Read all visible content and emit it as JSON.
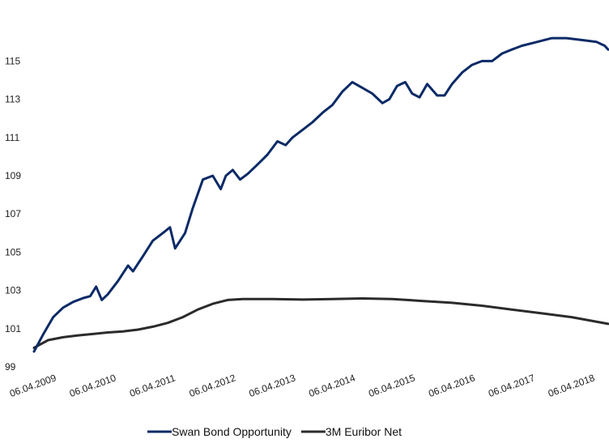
{
  "chart_data": {
    "type": "line",
    "title": "",
    "xlabel": "",
    "ylabel": "",
    "x_ticks": [
      "06.04.2009",
      "06.04.2010",
      "06.04.2011",
      "06.04.2012",
      "06.04.2013",
      "06.04.2014",
      "06.04.2015",
      "06.04.2016",
      "06.04.2017",
      "06.04.2018"
    ],
    "y_ticks": [
      99,
      101,
      103,
      105,
      107,
      109,
      111,
      113,
      115
    ],
    "ylim": [
      99,
      116.5
    ],
    "xlim": [
      "2009-04-06",
      "2018-11-15"
    ],
    "grid": false,
    "legend_position": "bottom",
    "series": [
      {
        "name": "Swan Bond Opportunity",
        "color": "#0b2a66",
        "points": [
          [
            "2009-04-06",
            99.8
          ],
          [
            "2009-06-01",
            100.7
          ],
          [
            "2009-08-01",
            101.6
          ],
          [
            "2009-10-01",
            102.1
          ],
          [
            "2009-12-01",
            102.4
          ],
          [
            "2010-02-01",
            102.6
          ],
          [
            "2010-03-15",
            102.7
          ],
          [
            "2010-04-20",
            103.2
          ],
          [
            "2010-05-25",
            102.5
          ],
          [
            "2010-07-01",
            102.8
          ],
          [
            "2010-09-01",
            103.5
          ],
          [
            "2010-11-01",
            104.3
          ],
          [
            "2010-12-01",
            104.0
          ],
          [
            "2011-02-01",
            104.8
          ],
          [
            "2011-04-01",
            105.6
          ],
          [
            "2011-06-01",
            106.0
          ],
          [
            "2011-07-15",
            106.3
          ],
          [
            "2011-08-15",
            105.2
          ],
          [
            "2011-09-15",
            105.6
          ],
          [
            "2011-10-15",
            106.0
          ],
          [
            "2011-12-01",
            107.3
          ],
          [
            "2012-02-01",
            108.8
          ],
          [
            "2012-04-01",
            109.0
          ],
          [
            "2012-05-20",
            108.3
          ],
          [
            "2012-06-20",
            109.0
          ],
          [
            "2012-08-01",
            109.3
          ],
          [
            "2012-09-15",
            108.8
          ],
          [
            "2012-11-01",
            109.1
          ],
          [
            "2013-01-01",
            109.6
          ],
          [
            "2013-03-01",
            110.1
          ],
          [
            "2013-05-01",
            110.8
          ],
          [
            "2013-06-20",
            110.6
          ],
          [
            "2013-08-01",
            111.0
          ],
          [
            "2013-10-01",
            111.4
          ],
          [
            "2013-12-01",
            111.8
          ],
          [
            "2014-02-01",
            112.3
          ],
          [
            "2014-04-01",
            112.7
          ],
          [
            "2014-06-01",
            113.4
          ],
          [
            "2014-08-01",
            113.9
          ],
          [
            "2014-10-01",
            113.6
          ],
          [
            "2014-12-01",
            113.3
          ],
          [
            "2015-02-01",
            112.8
          ],
          [
            "2015-03-15",
            113.0
          ],
          [
            "2015-05-01",
            113.7
          ],
          [
            "2015-06-20",
            113.9
          ],
          [
            "2015-08-01",
            113.3
          ],
          [
            "2015-09-15",
            113.1
          ],
          [
            "2015-11-01",
            113.8
          ],
          [
            "2016-01-01",
            113.2
          ],
          [
            "2016-02-15",
            113.2
          ],
          [
            "2016-04-01",
            113.8
          ],
          [
            "2016-06-01",
            114.4
          ],
          [
            "2016-08-01",
            114.8
          ],
          [
            "2016-10-01",
            115.0
          ],
          [
            "2016-12-01",
            115.0
          ],
          [
            "2017-02-01",
            115.4
          ],
          [
            "2017-04-01",
            115.6
          ],
          [
            "2017-06-01",
            115.8
          ],
          [
            "2017-09-01",
            116.0
          ],
          [
            "2017-12-01",
            116.2
          ],
          [
            "2018-03-01",
            116.2
          ],
          [
            "2018-06-01",
            116.1
          ],
          [
            "2018-09-01",
            116.0
          ],
          [
            "2018-10-20",
            115.8
          ],
          [
            "2018-11-10",
            115.6
          ]
        ]
      },
      {
        "name": "3M Euribor Net",
        "color": "#2b2b2b",
        "points": [
          [
            "2009-04-06",
            100.0
          ],
          [
            "2009-07-01",
            100.4
          ],
          [
            "2009-10-01",
            100.55
          ],
          [
            "2010-01-01",
            100.65
          ],
          [
            "2010-04-01",
            100.72
          ],
          [
            "2010-07-01",
            100.8
          ],
          [
            "2010-10-01",
            100.85
          ],
          [
            "2011-01-01",
            100.95
          ],
          [
            "2011-04-01",
            101.1
          ],
          [
            "2011-07-01",
            101.3
          ],
          [
            "2011-10-01",
            101.6
          ],
          [
            "2012-01-01",
            102.0
          ],
          [
            "2012-04-01",
            102.3
          ],
          [
            "2012-07-01",
            102.5
          ],
          [
            "2012-10-01",
            102.55
          ],
          [
            "2013-04-01",
            102.55
          ],
          [
            "2013-10-01",
            102.52
          ],
          [
            "2014-04-01",
            102.55
          ],
          [
            "2014-10-01",
            102.58
          ],
          [
            "2015-04-01",
            102.55
          ],
          [
            "2015-10-01",
            102.45
          ],
          [
            "2016-04-01",
            102.35
          ],
          [
            "2016-10-01",
            102.2
          ],
          [
            "2017-04-01",
            102.0
          ],
          [
            "2017-10-01",
            101.8
          ],
          [
            "2018-04-01",
            101.6
          ],
          [
            "2018-11-10",
            101.25
          ]
        ]
      }
    ]
  }
}
